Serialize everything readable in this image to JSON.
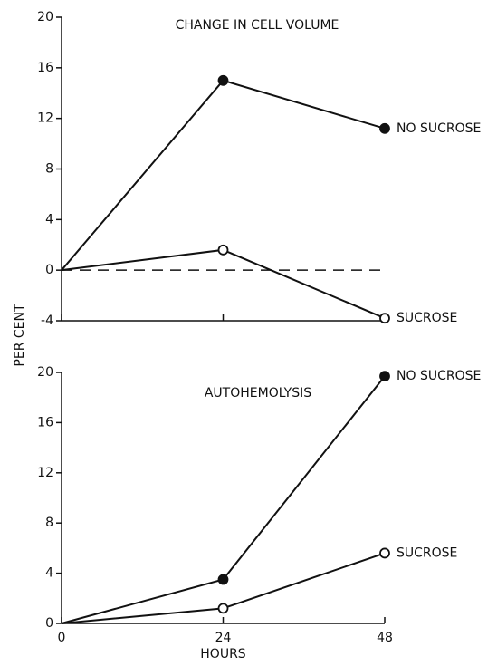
{
  "chart_data": [
    {
      "type": "line",
      "title": "CHANGE IN CELL VOLUME",
      "ylabel": "PER CENT",
      "x": [
        0,
        24,
        48
      ],
      "xlim": [
        0,
        48
      ],
      "xticks": [
        0,
        24,
        48
      ],
      "xtick_labels": false,
      "ylim": [
        -4,
        20
      ],
      "yticks": [
        -4,
        0,
        4,
        8,
        12,
        16,
        20
      ],
      "reference_line": {
        "y": 0,
        "style": "dashed"
      },
      "series": [
        {
          "name": "NO SUCROSE",
          "color": "#111111",
          "marker": "filled",
          "values": [
            0,
            15,
            11.2
          ]
        },
        {
          "name": "SUCROSE",
          "color": "#111111",
          "marker": "open",
          "values": [
            0,
            1.6,
            -3.8
          ]
        }
      ]
    },
    {
      "type": "line",
      "title": "AUTOHEMOLYSIS",
      "xlabel": "HOURS",
      "x": [
        0,
        24,
        48
      ],
      "xlim": [
        0,
        48
      ],
      "xticks": [
        0,
        24,
        48
      ],
      "xtick_labels": true,
      "ylim": [
        0,
        20
      ],
      "yticks": [
        0,
        4,
        8,
        12,
        16,
        20
      ],
      "series": [
        {
          "name": "NO SUCROSE",
          "color": "#111111",
          "marker": "filled",
          "values": [
            0,
            3.5,
            19.7
          ]
        },
        {
          "name": "SUCROSE",
          "color": "#111111",
          "marker": "open",
          "values": [
            0,
            1.2,
            5.6
          ]
        }
      ]
    }
  ]
}
